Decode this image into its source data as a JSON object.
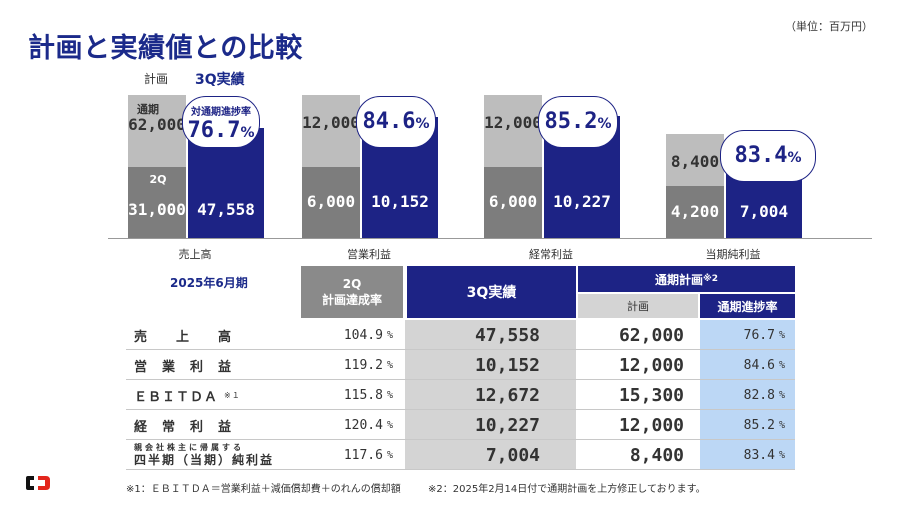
{
  "title": "計画と実績値との比較",
  "unit": "（単位：百万円）",
  "legend": {
    "plan": "計画",
    "actual": "3Q実績"
  },
  "chart_data": {
    "type": "bar",
    "categories": [
      "売上高",
      "営業利益",
      "経常利益",
      "当期純利益"
    ],
    "series": [
      {
        "name": "計画",
        "sub_labels": {
          "full_year": "通期",
          "q2": "2Q"
        },
        "full_year": [
          62000,
          12000,
          12000,
          8400
        ],
        "q2": [
          31000,
          6000,
          6000,
          4200
        ]
      },
      {
        "name": "3Q実績",
        "values": [
          47558,
          10152,
          10227,
          7004
        ]
      }
    ],
    "progress_label": "対通期進捗率",
    "progress": [
      "76.7",
      "84.6",
      "85.2",
      "83.4"
    ],
    "labels": {
      "full_year": [
        "62,000",
        "12,000",
        "12,000",
        "8,400"
      ],
      "q2": [
        "31,000",
        "6,000",
        "6,000",
        "4,200"
      ],
      "actual": [
        "47,558",
        "10,152",
        "10,227",
        "7,004"
      ]
    }
  },
  "table": {
    "period": "2025年6月期",
    "headers": {
      "rate_line1": "2Q",
      "rate_line2": "計画達成率",
      "actual": "3Q実績",
      "full_year": "通期計画",
      "full_year_note": "※2",
      "plan": "計画",
      "progress": "通期進捗率"
    },
    "pct_sign": "%",
    "rows": [
      {
        "name": "売　　上　　高",
        "rate": "104.9",
        "actual": "47,558",
        "plan": "62,000",
        "progress": "76.7"
      },
      {
        "name": "営　業　利　益",
        "rate": "119.2",
        "actual": "10,152",
        "plan": "12,000",
        "progress": "84.6"
      },
      {
        "name": "ＥＢＩＴＤＡ",
        "note": "※１",
        "rate": "115.8",
        "actual": "12,672",
        "plan": "15,300",
        "progress": "82.8"
      },
      {
        "name": "経　常　利　益",
        "rate": "120.4",
        "actual": "10,227",
        "plan": "12,000",
        "progress": "85.2"
      },
      {
        "name_line1": "親会社株主に帰属する",
        "name_line2": "四半期（当期）純利益",
        "rate": "117.6",
        "actual": "7,004",
        "plan": "8,400",
        "progress": "83.4"
      }
    ]
  },
  "footnotes": {
    "note1": "※1：ＥＢＩＴＤＡ＝営業利益＋減価償却費＋のれんの償却額",
    "note2": "※2：2025年2月14日付で通期計画を上方修正しております。"
  }
}
